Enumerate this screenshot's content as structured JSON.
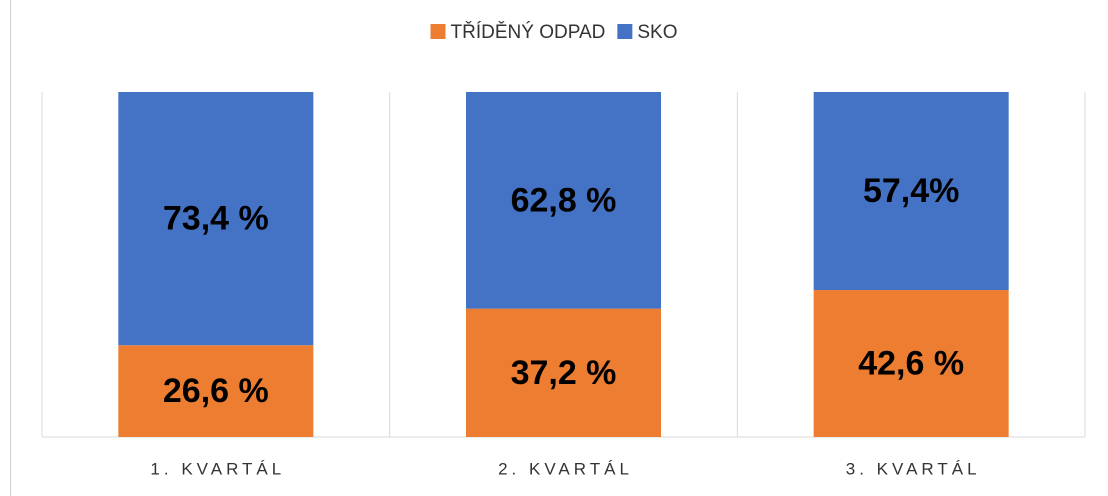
{
  "chart_data": {
    "type": "stacked_bar_100",
    "categories": [
      "1. KVARTÁL",
      "2. KVARTÁL",
      "3. KVARTÁL"
    ],
    "series": [
      {
        "name": "TŘÍDĚNÝ ODPAD",
        "color": "#ED7D31",
        "values": [
          26.6,
          37.2,
          42.6
        ],
        "value_labels": [
          "26,6 %",
          "37,2 %",
          "42,6 %"
        ]
      },
      {
        "name": "SKO",
        "color": "#4472C4",
        "values": [
          73.4,
          62.8,
          57.4
        ],
        "value_labels": [
          "73,4 %",
          "62,8 %",
          "57,4%"
        ]
      }
    ],
    "ylim": [
      0,
      100
    ],
    "legend": "top"
  }
}
